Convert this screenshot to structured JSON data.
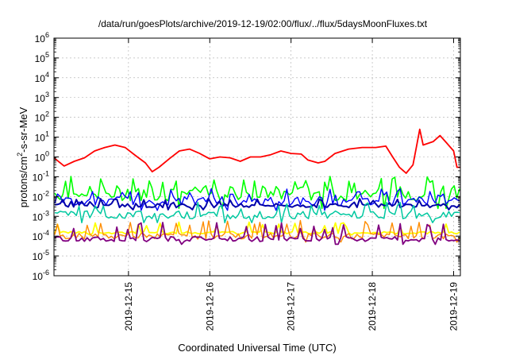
{
  "chart_data": {
    "type": "line",
    "title": "/data/run/goesPlots/archive/2019-12-19/02:00/flux/../flux/5daysMoonFluxes.txt",
    "xlabel": "Coordinated Universal Time (UTC)",
    "ylabel_base": "protons/cm",
    "ylabel_sup": "2",
    "ylabel_tail": "-s-sr-MeV",
    "yscale": "log",
    "ylim": [
      1e-06,
      1000000
    ],
    "xlim": [
      "2019-12-14 02:00",
      "2019-12-19 02:00"
    ],
    "yticks": [
      {
        "value": 1e-06,
        "base": "10",
        "exp": "-6"
      },
      {
        "value": 1e-05,
        "base": "10",
        "exp": "-5"
      },
      {
        "value": 0.0001,
        "base": "10",
        "exp": "-4"
      },
      {
        "value": 0.001,
        "base": "10",
        "exp": "-3"
      },
      {
        "value": 0.01,
        "base": "10",
        "exp": "-2"
      },
      {
        "value": 0.1,
        "base": "10",
        "exp": "-1"
      },
      {
        "value": 1,
        "base": "10",
        "exp": "0"
      },
      {
        "value": 10,
        "base": "10",
        "exp": "1"
      },
      {
        "value": 100,
        "base": "10",
        "exp": "2"
      },
      {
        "value": 1000,
        "base": "10",
        "exp": "3"
      },
      {
        "value": 10000,
        "base": "10",
        "exp": "4"
      },
      {
        "value": 100000,
        "base": "10",
        "exp": "5"
      },
      {
        "value": 1000000,
        "base": "10",
        "exp": "6"
      }
    ],
    "xticks": [
      "2019-12-15",
      "2019-12-16",
      "2019-12-17",
      "2019-12-18",
      "2019-12-19"
    ],
    "grid": true,
    "legend": "none",
    "series": [
      {
        "color": "#ff0000",
        "width": 1.8,
        "points": [
          [
            "2019-12-14 02:00",
            0.9
          ],
          [
            "2019-12-14 05:00",
            0.35
          ],
          [
            "2019-12-14 08:00",
            0.6
          ],
          [
            "2019-12-14 11:00",
            0.9
          ],
          [
            "2019-12-14 14:00",
            2.0
          ],
          [
            "2019-12-14 17:00",
            3.0
          ],
          [
            "2019-12-14 20:00",
            4.0
          ],
          [
            "2019-12-14 23:00",
            3.0
          ],
          [
            "2019-12-15 02:00",
            1.2
          ],
          [
            "2019-12-15 05:00",
            0.5
          ],
          [
            "2019-12-15 07:00",
            0.18
          ],
          [
            "2019-12-15 09:00",
            0.3
          ],
          [
            "2019-12-15 12:00",
            0.8
          ],
          [
            "2019-12-15 15:00",
            2.0
          ],
          [
            "2019-12-15 18:00",
            2.5
          ],
          [
            "2019-12-15 21:00",
            1.5
          ],
          [
            "2019-12-16 00:00",
            0.8
          ],
          [
            "2019-12-16 03:00",
            1.0
          ],
          [
            "2019-12-16 06:00",
            0.9
          ],
          [
            "2019-12-16 09:00",
            0.6
          ],
          [
            "2019-12-16 12:00",
            1.0
          ],
          [
            "2019-12-16 15:00",
            1.0
          ],
          [
            "2019-12-16 18:00",
            1.3
          ],
          [
            "2019-12-16 21:00",
            2.0
          ],
          [
            "2019-12-17 00:00",
            1.5
          ],
          [
            "2019-12-17 03:00",
            1.4
          ],
          [
            "2019-12-17 05:00",
            0.7
          ],
          [
            "2019-12-17 08:00",
            0.5
          ],
          [
            "2019-12-17 10:00",
            0.6
          ],
          [
            "2019-12-17 13:00",
            1.5
          ],
          [
            "2019-12-17 17:00",
            2.5
          ],
          [
            "2019-12-17 21:00",
            3.0
          ],
          [
            "2019-12-18 01:00",
            3.0
          ],
          [
            "2019-12-18 04:00",
            3.5
          ],
          [
            "2019-12-18 06:00",
            1.0
          ],
          [
            "2019-12-18 08:00",
            0.3
          ],
          [
            "2019-12-18 10:00",
            0.15
          ],
          [
            "2019-12-18 12:00",
            0.4
          ],
          [
            "2019-12-18 13:00",
            3.0
          ],
          [
            "2019-12-18 14:00",
            25.0
          ],
          [
            "2019-12-18 15:00",
            4.0
          ],
          [
            "2019-12-18 18:00",
            6.0
          ],
          [
            "2019-12-18 20:00",
            12.0
          ],
          [
            "2019-12-18 22:00",
            5.0
          ],
          [
            "2019-12-19 00:00",
            2.0
          ],
          [
            "2019-12-19 01:00",
            0.3
          ],
          [
            "2019-12-19 02:00",
            0.3
          ]
        ]
      },
      {
        "color": "#00ff00",
        "width": 1.6,
        "jitter": true,
        "base": 0.015,
        "spread": 6,
        "spikes": [
          0.06,
          0.07,
          0.08
        ]
      },
      {
        "color": "#0000ff",
        "width": 1.4,
        "jitter": true,
        "base": 0.006,
        "spread": 3,
        "spikes": [
          0.015,
          0.02
        ]
      },
      {
        "color": "#0000aa",
        "width": 2.0,
        "jitter": true,
        "base": 0.0035,
        "spread": 1.6,
        "spikes": [
          0.006
        ]
      },
      {
        "color": "#00c8a0",
        "width": 1.5,
        "jitter": true,
        "base": 0.0012,
        "spread": 2.5,
        "spikes": [
          0.003,
          0.004
        ]
      },
      {
        "color": "#ffff00",
        "width": 1.8,
        "jitter": true,
        "base": 0.00015,
        "spread": 1.3,
        "spikes": [
          0.0004
        ]
      },
      {
        "color": "#ff8c00",
        "width": 1.4,
        "jitter": true,
        "base": 0.0001,
        "spread": 2.0,
        "spikes": [
          0.0005,
          0.0004
        ]
      },
      {
        "color": "#800080",
        "width": 1.8,
        "jitter": true,
        "base": 7e-05,
        "spread": 1.8,
        "spikes": [
          0.0003,
          0.0004
        ]
      }
    ]
  }
}
